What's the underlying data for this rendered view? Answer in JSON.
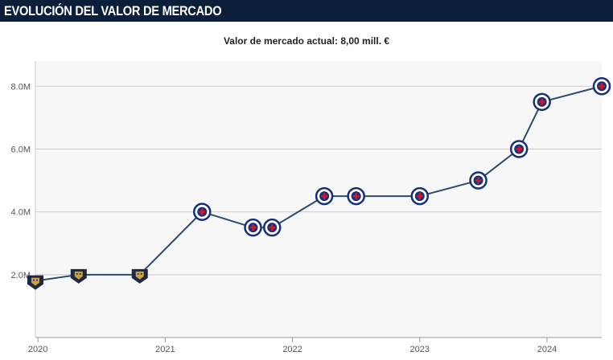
{
  "header": {
    "title": "EVOLUCIÓN DEL VALOR DE MERCADO"
  },
  "summary": {
    "label": "Valor de mercado actual:",
    "value": "8,00 mill. €"
  },
  "colors": {
    "header_bg": "#0b1f3a",
    "line": "#2c4a6e",
    "grid": "#cccccc",
    "plot_bg": "#f7f7f7",
    "club_cruz_azul": "#16307a",
    "club_pumas": "#1c2a44",
    "pumas_accent": "#c8a24a",
    "cruz_red": "#d2172a"
  },
  "chart_data": {
    "type": "line",
    "title": "",
    "xlabel": "",
    "ylabel": "",
    "y_ticks": [
      {
        "value": 2,
        "label": "2.0M"
      },
      {
        "value": 4,
        "label": "4.0M"
      },
      {
        "value": 6,
        "label": "6.0M"
      },
      {
        "value": 8,
        "label": "8.0M"
      }
    ],
    "x_ticks": [
      {
        "value": 2020.0,
        "label": "2020"
      },
      {
        "value": 2021.0,
        "label": "2021"
      },
      {
        "value": 2022.0,
        "label": "2022"
      },
      {
        "value": 2023.0,
        "label": "2023"
      },
      {
        "value": 2024.0,
        "label": "2024"
      }
    ],
    "xlim": [
      2019.98,
      2024.43
    ],
    "ylim": [
      0,
      8.8
    ],
    "grid": true,
    "series": [
      {
        "points": [
          {
            "x": 2019.98,
            "y": 1.8,
            "club": "Pumas"
          },
          {
            "x": 2020.32,
            "y": 2.0,
            "club": "Pumas"
          },
          {
            "x": 2020.8,
            "y": 2.0,
            "club": "Pumas"
          },
          {
            "x": 2021.29,
            "y": 4.0,
            "club": "Cruz Azul"
          },
          {
            "x": 2021.69,
            "y": 3.5,
            "club": "Cruz Azul"
          },
          {
            "x": 2021.84,
            "y": 3.5,
            "club": "Cruz Azul"
          },
          {
            "x": 2022.25,
            "y": 4.5,
            "club": "Cruz Azul"
          },
          {
            "x": 2022.5,
            "y": 4.5,
            "club": "Cruz Azul"
          },
          {
            "x": 2023.0,
            "y": 4.5,
            "club": "Cruz Azul"
          },
          {
            "x": 2023.46,
            "y": 5.0,
            "club": "Cruz Azul"
          },
          {
            "x": 2023.78,
            "y": 6.0,
            "club": "Cruz Azul"
          },
          {
            "x": 2023.96,
            "y": 7.5,
            "club": "Cruz Azul"
          },
          {
            "x": 2024.43,
            "y": 8.0,
            "club": "Cruz Azul"
          }
        ]
      }
    ]
  }
}
